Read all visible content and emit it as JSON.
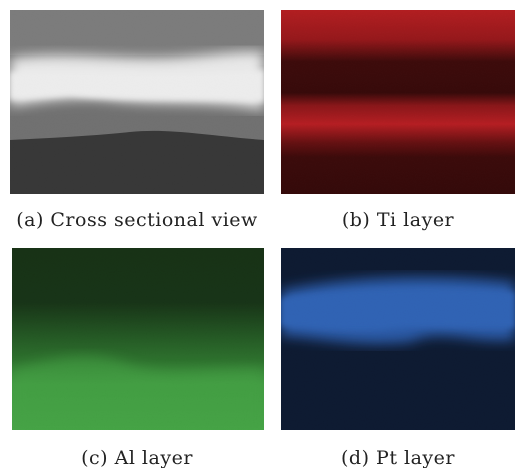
{
  "figure": {
    "panels": [
      {
        "caption": "(a) Cross sectional view"
      },
      {
        "caption": "(b) Ti layer"
      },
      {
        "caption": "(c) Al layer"
      },
      {
        "caption": "(d) Pt layer"
      }
    ]
  }
}
